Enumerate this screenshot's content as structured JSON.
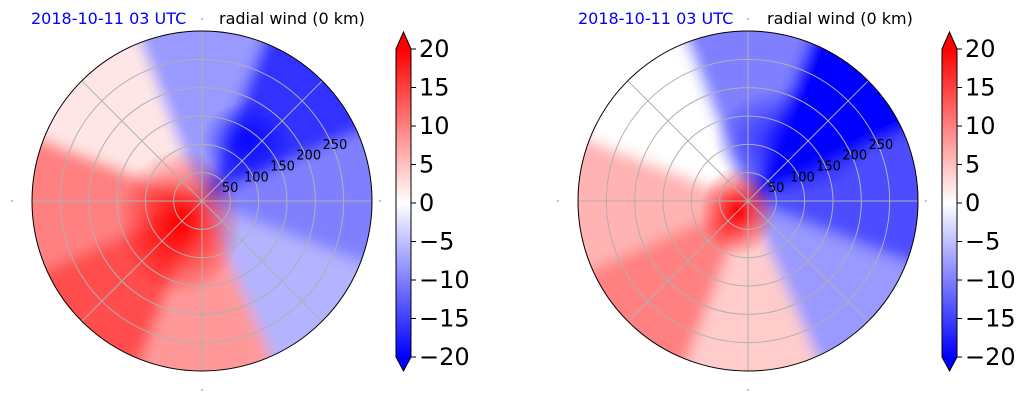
{
  "chart_data": [
    {
      "type": "heatmap",
      "projection": "polar",
      "title_left": "2018-10-11 03 UTC",
      "title_right": "radial wind (0 km)",
      "radial_ticks": [
        50,
        100,
        150,
        200,
        250
      ],
      "radial_limit": 300,
      "angular_grid_deg": [
        0,
        45,
        90,
        135,
        180,
        225,
        270,
        315
      ],
      "grid": true,
      "colorbar": {
        "ticks": [
          20,
          15,
          10,
          5,
          0,
          -5,
          -10,
          -15,
          -20
        ],
        "ticklabels": [
          "20",
          "15",
          "10",
          "5",
          "0",
          "−5",
          "−10",
          "−15",
          "−20"
        ],
        "range": [
          -20,
          20
        ],
        "extend": "both",
        "cmap": "bwr"
      },
      "field_regions": [
        {
          "sector": "north",
          "value": -8
        },
        {
          "sector": "north-east",
          "value": -16
        },
        {
          "sector": "east",
          "value": -10
        },
        {
          "sector": "south-east",
          "value": -6
        },
        {
          "sector": "south",
          "value": 8
        },
        {
          "sector": "south-west",
          "value": 14
        },
        {
          "sector": "west",
          "value": 10
        },
        {
          "sector": "north-west",
          "value": 2
        },
        {
          "sector": "core-south-west",
          "value": 20
        }
      ]
    },
    {
      "type": "heatmap",
      "projection": "polar",
      "title_left": "2018-10-11 03 UTC",
      "title_right": "radial wind (0 km)",
      "radial_ticks": [
        50,
        100,
        150,
        200,
        250
      ],
      "radial_limit": 300,
      "angular_grid_deg": [
        0,
        45,
        90,
        135,
        180,
        225,
        270,
        315
      ],
      "grid": true,
      "colorbar": {
        "ticks": [
          20,
          15,
          10,
          5,
          0,
          -5,
          -10,
          -15,
          -20
        ],
        "ticklabels": [
          "20",
          "15",
          "10",
          "5",
          "0",
          "−5",
          "−10",
          "−15",
          "−20"
        ],
        "range": [
          -20,
          20
        ],
        "extend": "both",
        "cmap": "bwr"
      },
      "field_regions": [
        {
          "sector": "north",
          "value": -10
        },
        {
          "sector": "north-east",
          "value": -20
        },
        {
          "sector": "east",
          "value": -14
        },
        {
          "sector": "south-east",
          "value": -8
        },
        {
          "sector": "south",
          "value": 4
        },
        {
          "sector": "south-west",
          "value": 10
        },
        {
          "sector": "west",
          "value": 6
        },
        {
          "sector": "north-west",
          "value": 0
        },
        {
          "sector": "core-south-west",
          "value": 20
        }
      ]
    }
  ]
}
